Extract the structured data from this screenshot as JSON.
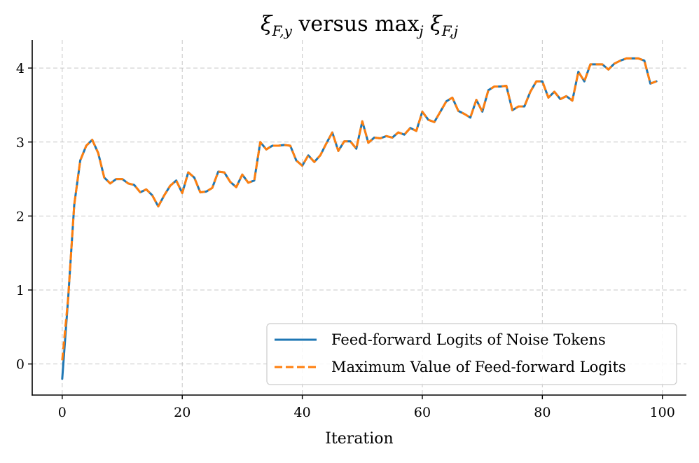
{
  "chart_data": {
    "type": "line",
    "title": {
      "base1": "ξ",
      "sub1": "F,y",
      "mid": " versus max",
      "sub_j": "j",
      "base2": " ξ",
      "sub2": "F,j"
    },
    "xlabel": "Iteration",
    "ylabel": "",
    "xlim": [
      -5,
      104
    ],
    "ylim": [
      -0.42,
      4.38
    ],
    "xticks": [
      0,
      20,
      40,
      60,
      80,
      100
    ],
    "yticks": [
      0,
      1,
      2,
      3,
      4
    ],
    "xtick_labels": [
      "0",
      "20",
      "40",
      "60",
      "80",
      "100"
    ],
    "ytick_labels": [
      "0",
      "1",
      "2",
      "3",
      "4"
    ],
    "grid": true,
    "legend_position": "lower-right",
    "x": [
      0,
      1,
      2,
      3,
      4,
      5,
      6,
      7,
      8,
      9,
      10,
      11,
      12,
      13,
      14,
      15,
      16,
      17,
      18,
      19,
      20,
      21,
      22,
      23,
      24,
      25,
      26,
      27,
      28,
      29,
      30,
      31,
      32,
      33,
      34,
      35,
      36,
      37,
      38,
      39,
      40,
      41,
      42,
      43,
      44,
      45,
      46,
      47,
      48,
      49,
      50,
      51,
      52,
      53,
      54,
      55,
      56,
      57,
      58,
      59,
      60,
      61,
      62,
      63,
      64,
      65,
      66,
      67,
      68,
      69,
      70,
      71,
      72,
      73,
      74,
      75,
      76,
      77,
      78,
      79,
      80,
      81,
      82,
      83,
      84,
      85,
      86,
      87,
      88,
      89,
      90,
      91,
      92,
      93,
      94,
      95,
      96,
      97,
      98,
      99
    ],
    "series": [
      {
        "name": "Feed-forward Logits of Noise Tokens",
        "color": "#1f77b4",
        "style": "solid",
        "values": [
          -0.2,
          0.9,
          2.15,
          2.75,
          2.95,
          3.03,
          2.85,
          2.52,
          2.44,
          2.5,
          2.5,
          2.44,
          2.42,
          2.32,
          2.36,
          2.28,
          2.13,
          2.28,
          2.41,
          2.48,
          2.31,
          2.59,
          2.52,
          2.32,
          2.33,
          2.38,
          2.6,
          2.59,
          2.46,
          2.39,
          2.56,
          2.45,
          2.48,
          3.0,
          2.9,
          2.95,
          2.95,
          2.96,
          2.95,
          2.75,
          2.68,
          2.82,
          2.73,
          2.82,
          2.98,
          3.13,
          2.88,
          3.01,
          3.01,
          2.91,
          3.28,
          2.99,
          3.06,
          3.05,
          3.08,
          3.06,
          3.13,
          3.1,
          3.19,
          3.15,
          3.41,
          3.3,
          3.27,
          3.41,
          3.55,
          3.6,
          3.42,
          3.38,
          3.33,
          3.57,
          3.41,
          3.7,
          3.75,
          3.75,
          3.76,
          3.43,
          3.48,
          3.48,
          3.68,
          3.82,
          3.82,
          3.6,
          3.68,
          3.58,
          3.62,
          3.56,
          3.95,
          3.82,
          4.05,
          4.05,
          4.05,
          3.98,
          4.06,
          4.1,
          4.13,
          4.13,
          4.13,
          4.1,
          3.79,
          3.82
        ]
      },
      {
        "name": "Maximum Value of Feed-forward Logits",
        "color": "#ff7f0e",
        "style": "dashed",
        "values": [
          0.05,
          0.9,
          2.15,
          2.75,
          2.95,
          3.03,
          2.85,
          2.52,
          2.44,
          2.5,
          2.5,
          2.44,
          2.42,
          2.32,
          2.36,
          2.28,
          2.13,
          2.28,
          2.41,
          2.48,
          2.31,
          2.59,
          2.52,
          2.32,
          2.33,
          2.38,
          2.6,
          2.59,
          2.46,
          2.39,
          2.56,
          2.45,
          2.48,
          3.0,
          2.9,
          2.95,
          2.95,
          2.96,
          2.95,
          2.75,
          2.68,
          2.82,
          2.73,
          2.82,
          2.98,
          3.13,
          2.88,
          3.01,
          3.01,
          2.91,
          3.28,
          2.99,
          3.06,
          3.05,
          3.08,
          3.06,
          3.13,
          3.1,
          3.19,
          3.15,
          3.41,
          3.3,
          3.27,
          3.41,
          3.55,
          3.6,
          3.42,
          3.38,
          3.33,
          3.57,
          3.41,
          3.7,
          3.75,
          3.75,
          3.76,
          3.43,
          3.48,
          3.48,
          3.68,
          3.82,
          3.82,
          3.6,
          3.68,
          3.58,
          3.62,
          3.56,
          3.95,
          3.82,
          4.05,
          4.05,
          4.05,
          3.98,
          4.06,
          4.1,
          4.13,
          4.13,
          4.13,
          4.1,
          3.79,
          3.82
        ]
      }
    ]
  }
}
